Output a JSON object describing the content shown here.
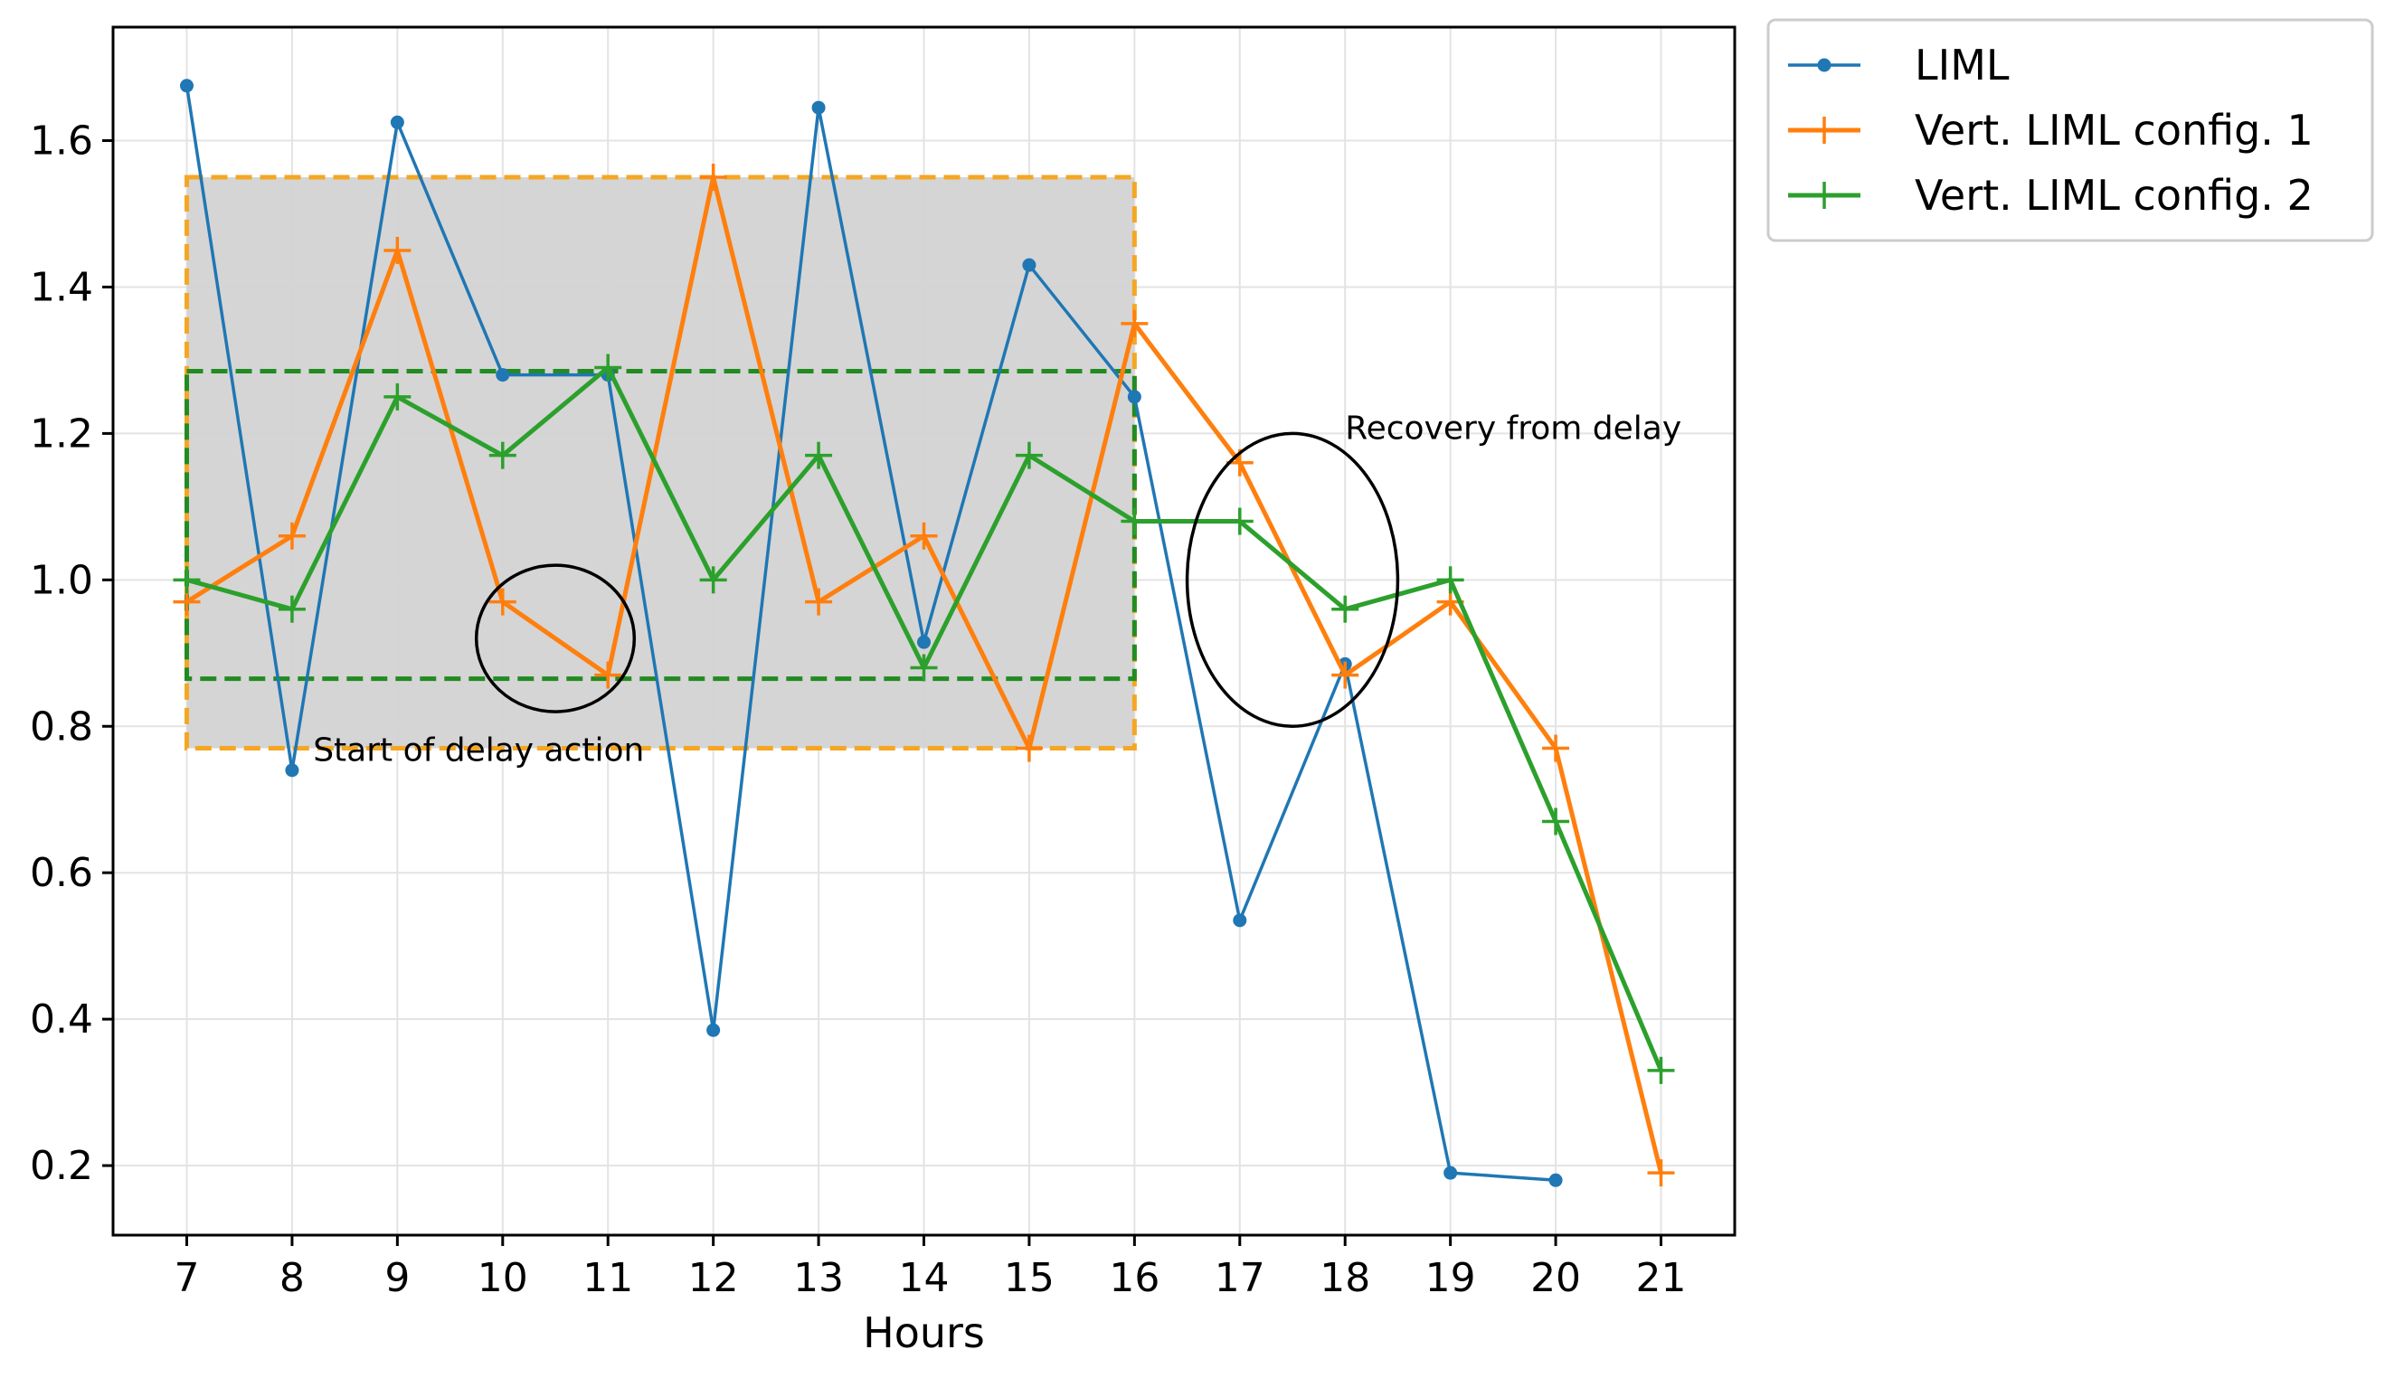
{
  "chart_data": {
    "type": "line",
    "xlabel": "Hours",
    "ylabel": "",
    "title": "",
    "xlim": [
      6.3,
      21.7
    ],
    "ylim": [
      0.105,
      1.755
    ],
    "xticks": [
      7,
      8,
      9,
      10,
      11,
      12,
      13,
      14,
      15,
      16,
      17,
      18,
      19,
      20,
      21
    ],
    "yticks": [
      0.2,
      0.4,
      0.6,
      0.8,
      1.0,
      1.2,
      1.4,
      1.6
    ],
    "ytick_labels": [
      "0.2",
      "0.4",
      "0.6",
      "0.8",
      "1.0",
      "1.2",
      "1.4",
      "1.6"
    ],
    "grid": true,
    "legend_position": "outside-top-right",
    "series": [
      {
        "name": "LIML",
        "color": "#1f77b4",
        "marker": "dot",
        "x": [
          7,
          8,
          9,
          10,
          11,
          12,
          13,
          14,
          15,
          16,
          17,
          18,
          19,
          20
        ],
        "y": [
          1.675,
          0.74,
          1.625,
          1.28,
          1.28,
          0.385,
          1.645,
          0.915,
          1.43,
          1.25,
          0.535,
          0.885,
          0.19,
          0.18
        ]
      },
      {
        "name": "Vert. LIML config. 1",
        "color": "#ff7f0e",
        "marker": "plus",
        "x": [
          7,
          8,
          9,
          10,
          11,
          12,
          13,
          14,
          15,
          16,
          17,
          18,
          19,
          20,
          21
        ],
        "y": [
          0.97,
          1.06,
          1.45,
          0.97,
          0.87,
          1.55,
          0.97,
          1.06,
          0.77,
          1.35,
          1.16,
          0.87,
          0.97,
          0.77,
          0.19
        ]
      },
      {
        "name": "Vert. LIML config. 2",
        "color": "#2ca02c",
        "marker": "plus",
        "x": [
          7,
          8,
          9,
          10,
          11,
          12,
          13,
          14,
          15,
          16,
          17,
          18,
          19,
          20,
          21
        ],
        "y": [
          1.0,
          0.96,
          1.25,
          1.17,
          1.29,
          1.0,
          1.17,
          0.88,
          1.17,
          1.08,
          1.08,
          0.96,
          1.0,
          0.67,
          0.33
        ]
      }
    ],
    "regions": [
      {
        "kind": "orange-dashed-box",
        "x": [
          7,
          16
        ],
        "y": [
          0.77,
          1.55
        ],
        "fill": "#d3d3d3",
        "stroke": "#f5a623"
      },
      {
        "kind": "green-dashed-box",
        "x": [
          7,
          16
        ],
        "y": [
          0.865,
          1.285
        ],
        "stroke": "#228b22"
      }
    ],
    "ellipses": [
      {
        "cx": 10.5,
        "cy": 0.92,
        "rx": 0.75,
        "ry": 0.1
      },
      {
        "cx": 17.5,
        "cy": 1.0,
        "rx": 1.0,
        "ry": 0.2
      }
    ],
    "annotations": [
      {
        "text": "Start of delay action",
        "x": 8.2,
        "y": 0.77
      },
      {
        "text": "Recovery from delay",
        "x": 18.0,
        "y": 1.21
      }
    ]
  }
}
